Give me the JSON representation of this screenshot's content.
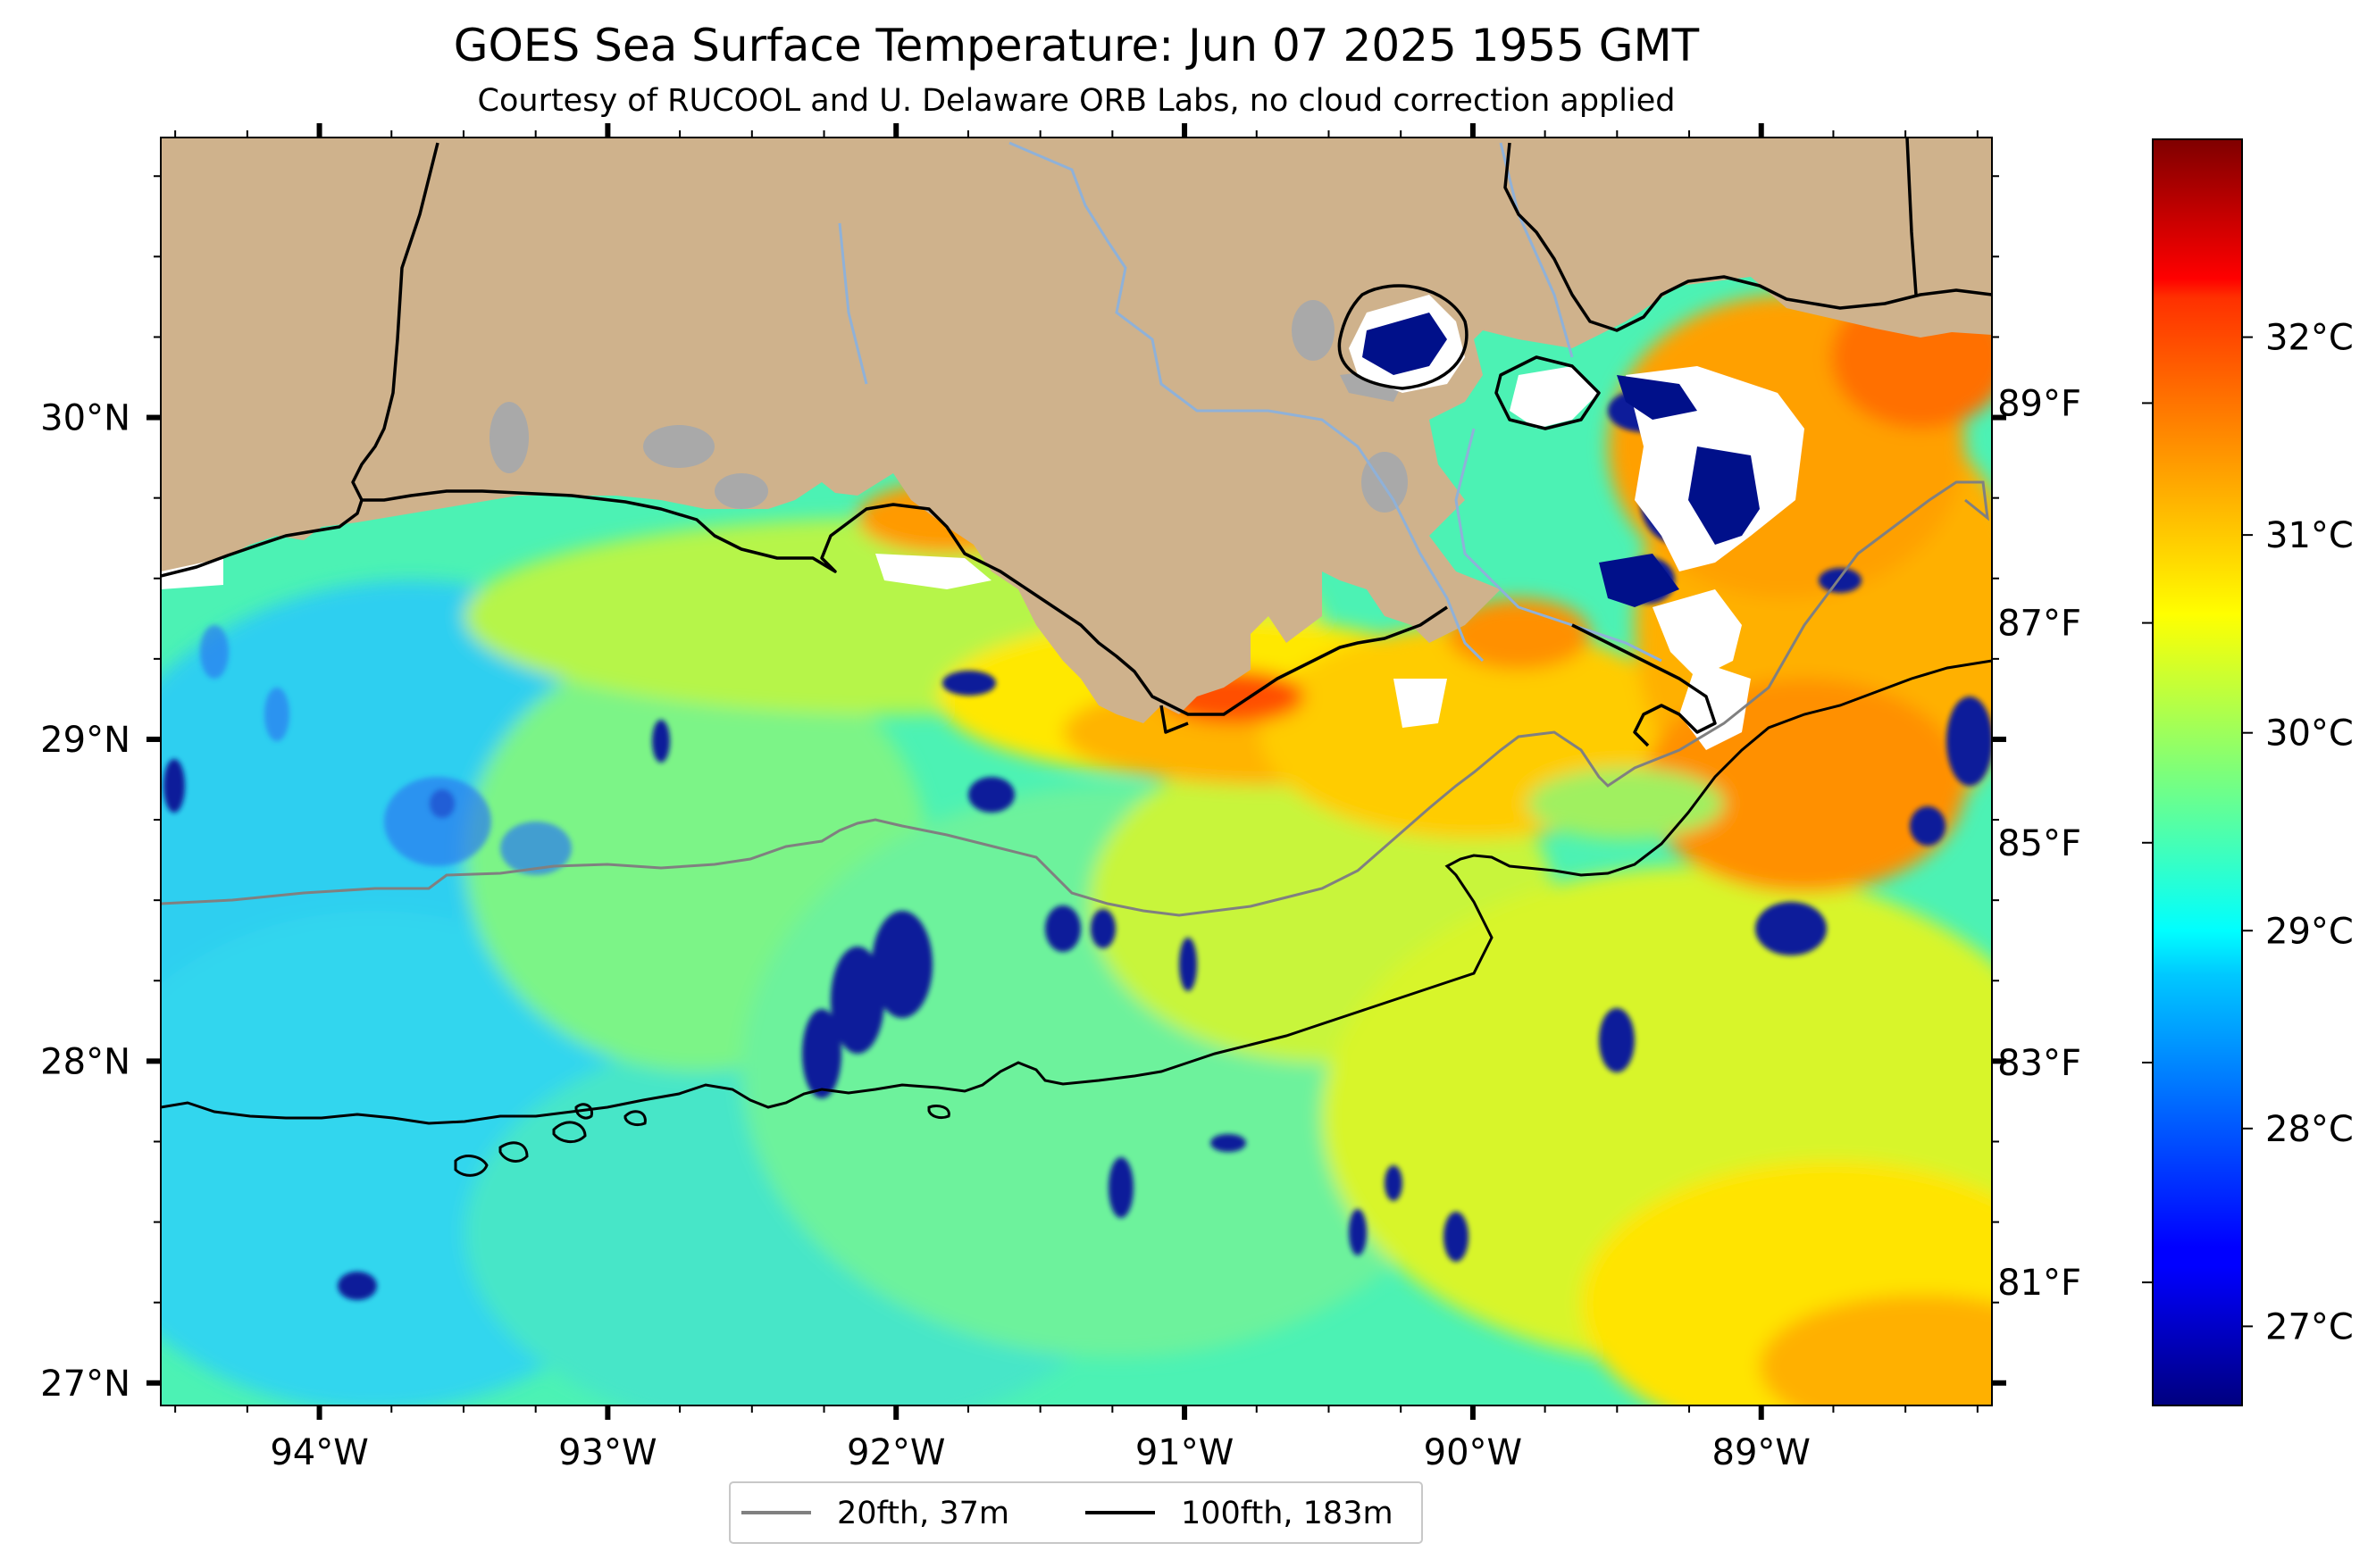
{
  "title": "GOES Sea Surface Temperature: Jun 07 2025 1955 GMT",
  "subtitle": "Courtesy of RUCOOL and U. Delaware ORB Labs, no cloud correction applied",
  "map": {
    "lon_range": [
      -94.55,
      -88.2
    ],
    "lat_range": [
      26.93,
      30.87
    ],
    "lon_ticks": [
      {
        "value": -94,
        "label": "94°W"
      },
      {
        "value": -93,
        "label": "93°W"
      },
      {
        "value": -92,
        "label": "92°W"
      },
      {
        "value": -91,
        "label": "91°W"
      },
      {
        "value": -90,
        "label": "90°W"
      },
      {
        "value": -89,
        "label": "89°W"
      }
    ],
    "lat_ticks": [
      {
        "value": 30,
        "label": "30°N"
      },
      {
        "value": 29,
        "label": "29°N"
      },
      {
        "value": 28,
        "label": "28°N"
      },
      {
        "value": 27,
        "label": "27°N"
      }
    ],
    "colors": {
      "land": "#cfb28c",
      "lakes": "#a9a9a9",
      "rivers": "#8fb1d8",
      "coast": "#000000",
      "no_data": "#ffffff"
    }
  },
  "colorbar": {
    "colormap": "jet",
    "range_c": [
      26.6,
      33.0
    ],
    "celsius_ticks": [
      {
        "value": 27,
        "label": "27°C"
      },
      {
        "value": 28,
        "label": "28°C"
      },
      {
        "value": 29,
        "label": "29°C"
      },
      {
        "value": 30,
        "label": "30°C"
      },
      {
        "value": 31,
        "label": "31°C"
      },
      {
        "value": 32,
        "label": "32°C"
      }
    ],
    "fahrenheit_ticks": [
      {
        "value": 81,
        "label": "81°F"
      },
      {
        "value": 83,
        "label": "83°F"
      },
      {
        "value": 85,
        "label": "85°F"
      },
      {
        "value": 87,
        "label": "87°F"
      },
      {
        "value": 89,
        "label": "89°F"
      }
    ]
  },
  "legend": {
    "items": [
      {
        "label": "20fth, 37m",
        "color": "#808080"
      },
      {
        "label": "100fth, 183m",
        "color": "#000000"
      }
    ]
  }
}
